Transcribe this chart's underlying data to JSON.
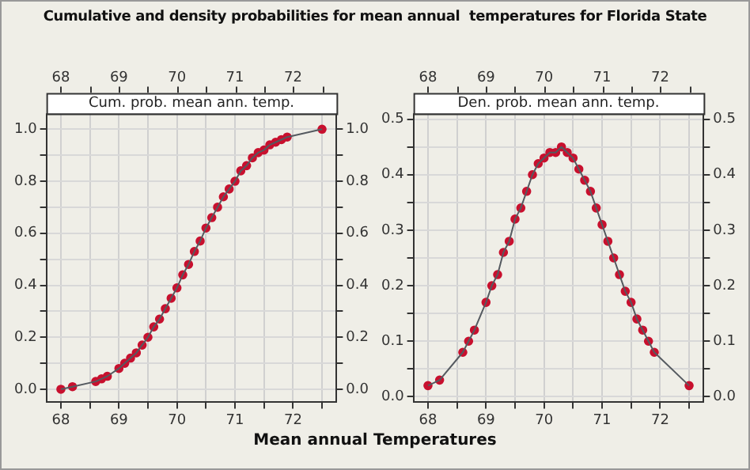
{
  "chart_data": [
    {
      "type": "line",
      "title": "Cumulative and density probabilities for mean annual  temperatures for Florida State",
      "subtitle": "Cum. prob. mean ann. temp.",
      "xlabel": "Mean annual Temperatures",
      "x": [
        68.0,
        68.2,
        68.6,
        68.7,
        68.8,
        69.0,
        69.1,
        69.2,
        69.3,
        69.4,
        69.5,
        69.6,
        69.7,
        69.8,
        69.9,
        70.0,
        70.1,
        70.2,
        70.3,
        70.4,
        70.5,
        70.6,
        70.7,
        70.8,
        70.9,
        71.0,
        71.1,
        71.2,
        71.3,
        71.4,
        71.5,
        71.6,
        71.7,
        71.8,
        71.9,
        72.5
      ],
      "series": [
        {
          "color": "#c8102e",
          "values": [
            0.0,
            0.01,
            0.03,
            0.04,
            0.05,
            0.08,
            0.1,
            0.12,
            0.14,
            0.17,
            0.2,
            0.24,
            0.27,
            0.31,
            0.35,
            0.39,
            0.44,
            0.48,
            0.53,
            0.57,
            0.62,
            0.66,
            0.7,
            0.74,
            0.77,
            0.8,
            0.84,
            0.86,
            0.89,
            0.91,
            0.92,
            0.94,
            0.95,
            0.96,
            0.97,
            1.0
          ]
        }
      ],
      "xlim": [
        67.75,
        72.75
      ],
      "xticks": [
        68,
        {
          "value": 68.5,
          "label": null
        },
        69,
        {
          "value": 69.5,
          "label": null
        },
        70,
        {
          "value": 70.5,
          "label": null
        },
        71,
        {
          "value": 71.5,
          "label": null
        },
        72,
        {
          "value": 72.5,
          "label": null
        }
      ],
      "x2lim": [
        67.75,
        72.75
      ],
      "x2ticks": [
        68,
        {
          "value": 68.5,
          "label": null
        },
        69,
        {
          "value": 69.5,
          "label": null
        },
        70,
        {
          "value": 70.5,
          "label": null
        },
        71,
        {
          "value": 71.5,
          "label": null
        },
        72,
        {
          "value": 72.5,
          "label": null
        }
      ],
      "ylim": [
        -0.05,
        1.06
      ],
      "yticks": [
        {
          "value": 0,
          "label": "0.0"
        },
        {
          "value": 0.1,
          "label": null
        },
        0.2,
        {
          "value": 0.3,
          "label": null
        },
        0.4,
        {
          "value": 0.5,
          "label": null
        },
        0.6,
        {
          "value": 0.7,
          "label": null
        },
        0.8,
        {
          "value": 0.9,
          "label": null
        },
        {
          "value": 1,
          "label": "1.0"
        }
      ],
      "y2lim": [
        -0.05,
        1.06
      ],
      "y2ticks": [
        {
          "value": 0,
          "label": "0.0"
        },
        {
          "value": 0.1,
          "label": null
        },
        0.2,
        {
          "value": 0.3,
          "label": null
        },
        0.4,
        {
          "value": 0.5,
          "label": null
        },
        0.6,
        {
          "value": 0.7,
          "label": null
        },
        0.8,
        {
          "value": 0.9,
          "label": null
        },
        {
          "value": 1,
          "label": "1.0"
        }
      ],
      "grid": true,
      "marker": "circle",
      "line_style": "solid"
    },
    {
      "type": "line",
      "subtitle": "Den. prob. mean ann. temp.",
      "x": [
        68.0,
        68.2,
        68.6,
        68.7,
        68.8,
        69.0,
        69.1,
        69.2,
        69.3,
        69.4,
        69.5,
        69.6,
        69.7,
        69.8,
        69.9,
        70.0,
        70.1,
        70.2,
        70.3,
        70.4,
        70.5,
        70.6,
        70.7,
        70.8,
        70.9,
        71.0,
        71.1,
        71.2,
        71.3,
        71.4,
        71.5,
        71.6,
        71.7,
        71.8,
        71.9,
        72.5
      ],
      "series": [
        {
          "color": "#c8102e",
          "values": [
            0.02,
            0.03,
            0.08,
            0.1,
            0.12,
            0.17,
            0.2,
            0.22,
            0.26,
            0.28,
            0.32,
            0.34,
            0.37,
            0.4,
            0.42,
            0.43,
            0.44,
            0.44,
            0.45,
            0.44,
            0.43,
            0.41,
            0.39,
            0.37,
            0.34,
            0.31,
            0.28,
            0.25,
            0.22,
            0.19,
            0.17,
            0.14,
            0.12,
            0.1,
            0.08,
            0.02
          ]
        }
      ],
      "xlim": [
        67.75,
        72.75
      ],
      "xticks": [
        68,
        {
          "value": 68.5,
          "label": null
        },
        69,
        {
          "value": 69.5,
          "label": null
        },
        70,
        {
          "value": 70.5,
          "label": null
        },
        71,
        {
          "value": 71.5,
          "label": null
        },
        72,
        {
          "value": 72.5,
          "label": null
        }
      ],
      "x2lim": [
        67.75,
        72.75
      ],
      "x2ticks": [
        68,
        {
          "value": 68.5,
          "label": null
        },
        69,
        {
          "value": 69.5,
          "label": null
        },
        70,
        {
          "value": 70.5,
          "label": null
        },
        71,
        {
          "value": 71.5,
          "label": null
        },
        72,
        {
          "value": 72.5,
          "label": null
        }
      ],
      "ylim": [
        -0.01,
        0.51
      ],
      "yticks": [
        {
          "value": 0,
          "label": "0.0"
        },
        {
          "value": 0.05,
          "label": null
        },
        0.1,
        {
          "value": 0.15,
          "label": null
        },
        0.2,
        {
          "value": 0.25,
          "label": null
        },
        0.3,
        {
          "value": 0.35,
          "label": null
        },
        0.4,
        {
          "value": 0.45,
          "label": null
        },
        0.5
      ],
      "y2lim": [
        -0.01,
        0.51
      ],
      "y2ticks": [
        {
          "value": 0,
          "label": "0.0"
        },
        {
          "value": 0.05,
          "label": null
        },
        0.1,
        {
          "value": 0.15,
          "label": null
        },
        0.2,
        {
          "value": 0.25,
          "label": null
        },
        0.3,
        {
          "value": 0.35,
          "label": null
        },
        0.4,
        {
          "value": 0.45,
          "label": null
        },
        0.5
      ],
      "grid": true,
      "marker": "circle",
      "line_style": "solid"
    }
  ]
}
